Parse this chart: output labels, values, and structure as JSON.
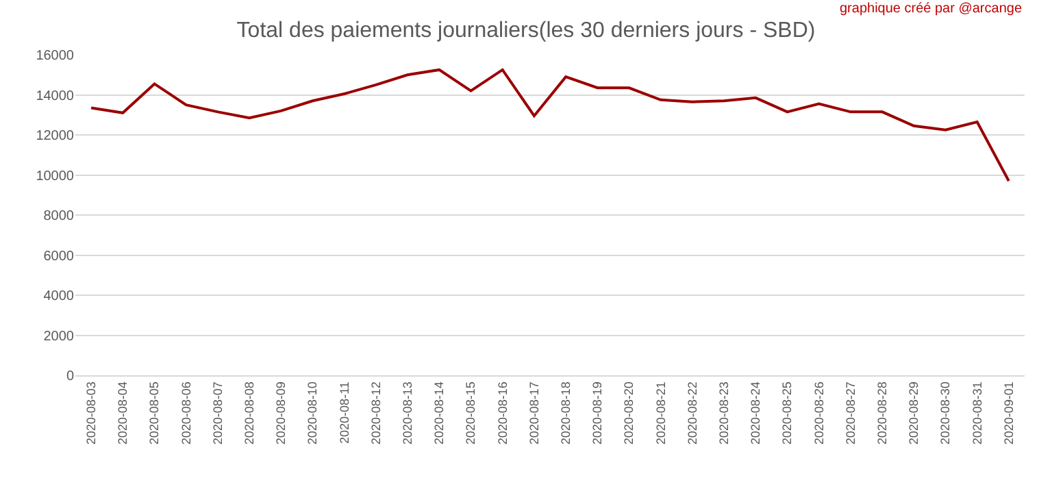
{
  "chart_data": {
    "type": "line",
    "title": "Total des paiements journaliers(les 30 derniers jours - SBD)",
    "annotations": [
      "graphique créé par @arcange"
    ],
    "categories": [
      "2020-08-03",
      "2020-08-04",
      "2020-08-05",
      "2020-08-06",
      "2020-08-07",
      "2020-08-08",
      "2020-08-09",
      "2020-08-10",
      "2020-08-11",
      "2020-08-12",
      "2020-08-13",
      "2020-08-14",
      "2020-08-15",
      "2020-08-16",
      "2020-08-17",
      "2020-08-18",
      "2020-08-19",
      "2020-08-20",
      "2020-08-21",
      "2020-08-22",
      "2020-08-23",
      "2020-08-24",
      "2020-08-25",
      "2020-08-26",
      "2020-08-27",
      "2020-08-28",
      "2020-08-29",
      "2020-08-30",
      "2020-08-31",
      "2020-09-01"
    ],
    "series": [
      {
        "color": "#9b0000",
        "values": [
          13350,
          13100,
          14550,
          13500,
          13150,
          12850,
          13200,
          13700,
          14050,
          14500,
          15000,
          15250,
          14200,
          15250,
          12950,
          14900,
          14350,
          14350,
          13750,
          13650,
          13700,
          13850,
          13150,
          13550,
          13150,
          13150,
          12450,
          12250,
          12650,
          9700
        ]
      }
    ],
    "ylim": [
      0,
      16000
    ],
    "yticks": [
      0,
      2000,
      4000,
      6000,
      8000,
      10000,
      12000,
      14000,
      16000
    ],
    "grid": "y",
    "marker": "none",
    "line_style": "solid"
  }
}
